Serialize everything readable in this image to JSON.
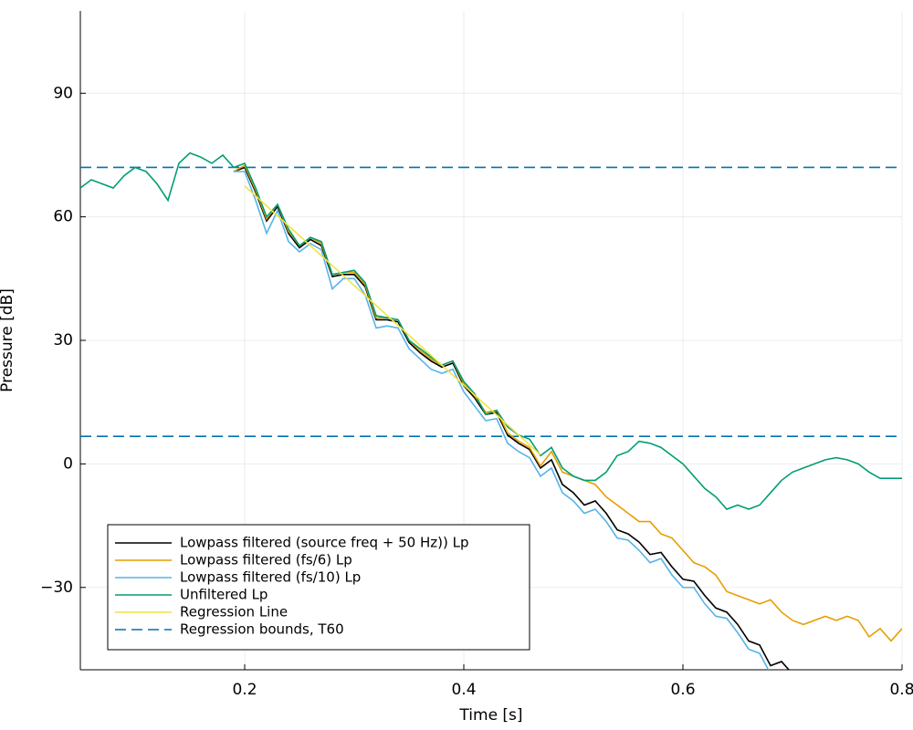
{
  "chart_data": {
    "type": "line",
    "xlabel": "Time [s]",
    "ylabel": "Pressure [dB]",
    "xlim": [
      0.05,
      0.8
    ],
    "ylim": [
      -50,
      110
    ],
    "xticks": [
      0.2,
      0.4,
      0.6,
      0.8
    ],
    "yticks": [
      {
        "value": -30,
        "label": "−30"
      },
      0,
      30,
      60,
      90
    ],
    "grid": true,
    "legend": "lower left",
    "x": [
      0.05,
      0.06,
      0.07,
      0.08,
      0.09,
      0.1,
      0.11,
      0.12,
      0.13,
      0.14,
      0.15,
      0.16,
      0.17,
      0.18,
      0.19,
      0.2,
      0.21,
      0.22,
      0.23,
      0.24,
      0.25,
      0.26,
      0.27,
      0.28,
      0.29,
      0.3,
      0.31,
      0.32,
      0.33,
      0.34,
      0.35,
      0.36,
      0.37,
      0.38,
      0.39,
      0.4,
      0.41,
      0.42,
      0.43,
      0.44,
      0.45,
      0.46,
      0.47,
      0.48,
      0.49,
      0.5,
      0.51,
      0.52,
      0.53,
      0.54,
      0.55,
      0.56,
      0.57,
      0.58,
      0.59,
      0.6,
      0.61,
      0.62,
      0.63,
      0.64,
      0.65,
      0.66,
      0.67,
      0.68,
      0.69,
      0.7,
      0.71,
      0.72,
      0.73,
      0.74,
      0.75,
      0.76,
      0.77,
      0.78,
      0.79,
      0.8
    ],
    "series": [
      {
        "name": "Lowpass filtered (source freq + 50 Hz)) Lp",
        "color": "#000000",
        "values": [
          null,
          null,
          null,
          null,
          null,
          null,
          null,
          null,
          null,
          null,
          null,
          null,
          null,
          null,
          71,
          72,
          66,
          59,
          62.5,
          56,
          52.5,
          54.5,
          53,
          45.5,
          46,
          46,
          43,
          35,
          35,
          34.5,
          29.5,
          27,
          25,
          23.5,
          24.5,
          19,
          16,
          12,
          12.5,
          7,
          5,
          3.5,
          -1,
          1,
          -5,
          -7,
          -10,
          -9,
          -12,
          -16,
          -17,
          -19,
          -22,
          -21.5,
          -25,
          -28,
          -28.5,
          -32,
          -35,
          -36,
          -39,
          -43,
          -44,
          -49,
          -48,
          -51,
          -53,
          null,
          null,
          null,
          null,
          null,
          null,
          null,
          null,
          null
        ]
      },
      {
        "name": "Lowpass filtered (fs/6) Lp",
        "color": "#e69f00",
        "values": [
          null,
          null,
          null,
          null,
          null,
          null,
          null,
          null,
          null,
          null,
          null,
          null,
          null,
          null,
          71,
          72.5,
          66.5,
          59.5,
          63,
          56.5,
          53,
          55,
          53.5,
          46,
          46.5,
          46.5,
          43.5,
          35.5,
          35.5,
          35,
          30,
          27.5,
          25.5,
          24,
          25,
          19.5,
          16.5,
          12.5,
          13,
          7.5,
          5.5,
          4,
          -0.5,
          3,
          -2,
          -3,
          -4,
          -5,
          -8,
          -10,
          -12,
          -14,
          -14,
          -17,
          -18,
          -21,
          -24,
          -25,
          -27,
          -31,
          -32,
          -33,
          -34,
          -33,
          -36,
          -38,
          -39,
          -38,
          -37,
          -38,
          -37,
          -38,
          -42,
          -40,
          -43,
          -40
        ]
      },
      {
        "name": "Lowpass filtered (fs/10) Lp",
        "color": "#56b4e9",
        "values": [
          null,
          null,
          null,
          null,
          null,
          null,
          null,
          null,
          null,
          null,
          null,
          null,
          null,
          null,
          71,
          71,
          64,
          56,
          61.5,
          54,
          51.5,
          53.5,
          52,
          42.5,
          45,
          45,
          41,
          33,
          33.5,
          33,
          28,
          25.5,
          23,
          22,
          23,
          17.5,
          14,
          10.5,
          11,
          5,
          3,
          1.5,
          -3,
          -1,
          -7,
          -9,
          -12,
          -11,
          -14,
          -18,
          -18.5,
          -21,
          -24,
          -23,
          -27,
          -30,
          -30,
          -34,
          -37,
          -37.5,
          -41,
          -45,
          -46,
          -51,
          -52,
          null,
          null,
          null,
          null,
          null,
          null,
          null,
          null,
          null,
          null,
          null
        ]
      },
      {
        "name": "Unfiltered Lp",
        "color": "#009e73",
        "values": [
          67,
          69,
          68,
          67,
          70,
          72,
          71,
          68,
          64,
          73,
          75.5,
          74.5,
          73,
          75,
          72,
          73,
          67,
          60,
          63,
          57,
          53,
          55,
          54,
          46,
          46.5,
          47,
          44,
          36,
          35.5,
          35,
          30,
          28,
          26,
          24,
          25,
          20,
          17,
          12,
          13,
          9,
          7,
          6,
          2,
          4,
          -1,
          -3,
          -4,
          -4,
          -2,
          2,
          3,
          5.5,
          5,
          4,
          2,
          0,
          -3,
          -6,
          -8,
          -11,
          -10,
          -11,
          -10,
          -7,
          -4,
          -2,
          -1,
          0,
          1,
          1.5,
          1,
          0,
          -2,
          -3.5,
          -3.5,
          -3.5
        ]
      },
      {
        "name": "Regression Line",
        "color": "#f0e442",
        "x": [
          0.2,
          0.47
        ],
        "values": [
          67.5,
          2.2
        ]
      }
    ],
    "hlines": {
      "name": "Regression bounds, T60",
      "color": "#0072b2",
      "values": [
        72,
        6.7
      ]
    }
  }
}
